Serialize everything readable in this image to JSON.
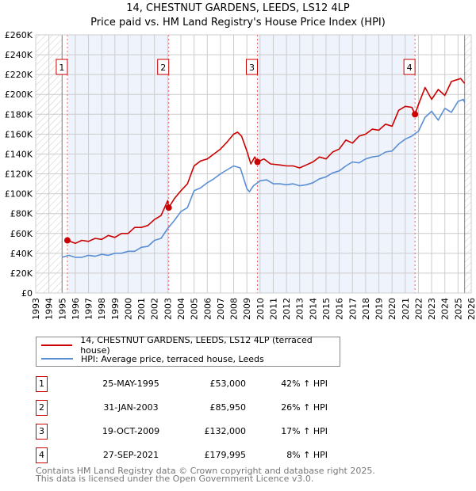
{
  "title_line1": "14, CHESTNUT GARDENS, LEEDS, LS12 4LP",
  "title_line2": "Price paid vs. HM Land Registry's House Price Index (HPI)",
  "legend": {
    "property": "14, CHESTNUT GARDENS, LEEDS, LS12 4LP (terraced house)",
    "hpi": "HPI: Average price, terraced house, Leeds"
  },
  "sales": [
    {
      "num": "1",
      "date": "25-MAY-1995",
      "price": "£53,000",
      "hpi": "42% ↑ HPI"
    },
    {
      "num": "2",
      "date": "31-JAN-2003",
      "price": "£85,950",
      "hpi": "26% ↑ HPI"
    },
    {
      "num": "3",
      "date": "19-OCT-2009",
      "price": "£132,000",
      "hpi": "17% ↑ HPI"
    },
    {
      "num": "4",
      "date": "27-SEP-2021",
      "price": "£179,995",
      "hpi": "8% ↑ HPI"
    }
  ],
  "footer": {
    "line1": "Contains HM Land Registry data © Crown copyright and database right 2025.",
    "line2": "This data is licensed under the Open Government Licence v3.0."
  },
  "colors": {
    "property": "#cc0000",
    "hpi": "#5b8fd4",
    "band": "#eef3fc"
  },
  "chart_data": {
    "type": "line",
    "xlim": [
      1993,
      2026
    ],
    "ylim": [
      0,
      260000
    ],
    "xticks": [
      1993,
      1994,
      1995,
      1996,
      1997,
      1998,
      1999,
      2000,
      2001,
      2002,
      2003,
      2004,
      2005,
      2006,
      2007,
      2008,
      2009,
      2010,
      2011,
      2012,
      2013,
      2014,
      2015,
      2016,
      2017,
      2018,
      2019,
      2020,
      2021,
      2022,
      2023,
      2024,
      2025,
      2026
    ],
    "yticks": [
      0,
      20000,
      40000,
      60000,
      80000,
      100000,
      120000,
      140000,
      160000,
      180000,
      200000,
      220000,
      240000,
      260000
    ],
    "ytick_labels": [
      "£0",
      "£20K",
      "£40K",
      "£60K",
      "£80K",
      "£100K",
      "£120K",
      "£140K",
      "£160K",
      "£180K",
      "£200K",
      "£220K",
      "£240K",
      "£260K"
    ],
    "grid": true,
    "hatched_ranges": [
      [
        1993,
        1995.0
      ],
      [
        2025.5,
        2026
      ]
    ],
    "sale_points": [
      {
        "label": "1",
        "x": 1995.4,
        "y": 53000
      },
      {
        "label": "2",
        "x": 2003.08,
        "y": 85950
      },
      {
        "label": "3",
        "x": 2009.8,
        "y": 132000
      },
      {
        "label": "4",
        "x": 2021.74,
        "y": 179995
      }
    ],
    "series": [
      {
        "name": "14, CHESTNUT GARDENS, LEEDS, LS12 4LP (terraced house)",
        "x": [
          1995.4,
          1996,
          1996.5,
          1997,
          1997.5,
          1998,
          1998.5,
          1999,
          1999.5,
          2000,
          2000.5,
          2001,
          2001.5,
          2002,
          2002.5,
          2003.0,
          2003.08,
          2003.5,
          2004,
          2004.5,
          2005,
          2005.5,
          2006,
          2006.5,
          2007,
          2007.5,
          2008,
          2008.3,
          2008.6,
          2009,
          2009.3,
          2009.6,
          2009.8,
          2010.3,
          2010.8,
          2011.5,
          2012,
          2012.5,
          2013,
          2013.5,
          2014,
          2014.5,
          2015,
          2015.5,
          2016,
          2016.5,
          2017,
          2017.5,
          2018,
          2018.5,
          2019,
          2019.5,
          2020,
          2020.5,
          2021,
          2021.5,
          2021.74,
          2022,
          2022.5,
          2023,
          2023.5,
          2024,
          2024.5,
          2025.2,
          2025.5
        ],
        "y": [
          53000,
          50000,
          53000,
          52000,
          55000,
          54000,
          58000,
          56000,
          60000,
          60000,
          66000,
          66000,
          68000,
          74000,
          78000,
          93000,
          85950,
          95000,
          103000,
          110000,
          128000,
          133000,
          135000,
          140000,
          145000,
          152000,
          160000,
          162000,
          158000,
          143000,
          130000,
          137000,
          132000,
          135000,
          130000,
          129000,
          128000,
          128000,
          126000,
          129000,
          132000,
          137000,
          135000,
          142000,
          145000,
          154000,
          151000,
          158000,
          160000,
          165000,
          164000,
          170000,
          168000,
          184000,
          188000,
          187000,
          179995,
          190000,
          207000,
          195000,
          205000,
          199000,
          213000,
          216000,
          211000
        ]
      },
      {
        "name": "HPI: Average price, terraced house, Leeds",
        "x": [
          1995,
          1995.5,
          1996,
          1996.5,
          1997,
          1997.5,
          1998,
          1998.5,
          1999,
          1999.5,
          2000,
          2000.5,
          2001,
          2001.5,
          2002,
          2002.5,
          2003,
          2003.5,
          2004,
          2004.5,
          2005,
          2005.5,
          2006,
          2006.5,
          2007,
          2007.5,
          2008,
          2008.5,
          2009,
          2009.2,
          2009.5,
          2010,
          2010.5,
          2011,
          2011.5,
          2012,
          2012.5,
          2013,
          2013.5,
          2014,
          2014.5,
          2015,
          2015.5,
          2016,
          2016.5,
          2017,
          2017.5,
          2018,
          2018.5,
          2019,
          2019.5,
          2020,
          2020.5,
          2021,
          2021.5,
          2022,
          2022.5,
          2023,
          2023.5,
          2024,
          2024.5,
          2025,
          2025.4,
          2025.5
        ],
        "y": [
          36000,
          38000,
          36000,
          36000,
          38000,
          37000,
          39000,
          38000,
          40000,
          40000,
          42000,
          42000,
          46000,
          47000,
          53000,
          55000,
          65000,
          73000,
          82000,
          86000,
          103000,
          106000,
          111000,
          115000,
          120000,
          124000,
          128000,
          126000,
          105000,
          102000,
          108000,
          113000,
          114000,
          110000,
          110000,
          109000,
          110000,
          108000,
          109000,
          111000,
          115000,
          117000,
          121000,
          123000,
          128000,
          132000,
          131000,
          135000,
          137000,
          138000,
          142000,
          143000,
          150000,
          155000,
          158000,
          163000,
          177000,
          183000,
          174000,
          186000,
          182000,
          193000,
          195000,
          192000
        ]
      }
    ]
  }
}
